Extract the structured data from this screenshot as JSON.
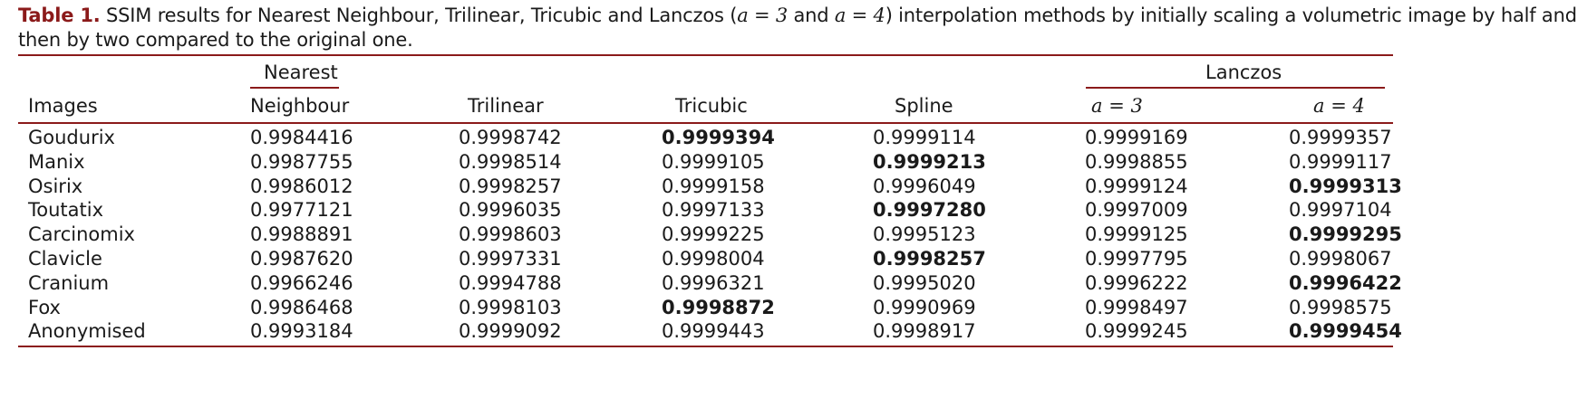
{
  "caption": {
    "label": "Table 1.",
    "text": "SSIM results for Nearest Neighbour, Trilinear, Tricubic and Lanczos (",
    "math1": "a = 3",
    "mid": " and ",
    "math2": "a = 4",
    "tail": ") interpolation methods by initially scaling a volumetric image by half and then by two compared to the original one."
  },
  "header": {
    "images": "Images",
    "nearest_top": "Nearest",
    "nearest_bottom": "Neighbour",
    "trilinear": "Trilinear",
    "tricubic": "Tricubic",
    "spline": "Spline",
    "lanczos": "Lanczos",
    "a3": "a = 3",
    "a4": "a = 4"
  },
  "rows": [
    {
      "image": "Goudurix",
      "values": [
        "0.9984416",
        "0.9998742",
        "0.9999394",
        "0.9999114",
        "0.9999169",
        "0.9999357"
      ],
      "best": 2
    },
    {
      "image": "Manix",
      "values": [
        "0.9987755",
        "0.9998514",
        "0.9999105",
        "0.9999213",
        "0.9998855",
        "0.9999117"
      ],
      "best": 3
    },
    {
      "image": "Osirix",
      "values": [
        "0.9986012",
        "0.9998257",
        "0.9999158",
        "0.9996049",
        "0.9999124",
        "0.9999313"
      ],
      "best": 5
    },
    {
      "image": "Toutatix",
      "values": [
        "0.9977121",
        "0.9996035",
        "0.9997133",
        "0.9997280",
        "0.9997009",
        "0.9997104"
      ],
      "best": 3
    },
    {
      "image": "Carcinomix",
      "values": [
        "0.9988891",
        "0.9998603",
        "0.9999225",
        "0.9995123",
        "0.9999125",
        "0.9999295"
      ],
      "best": 5
    },
    {
      "image": "Clavicle",
      "values": [
        "0.9987620",
        "0.9997331",
        "0.9998004",
        "0.9998257",
        "0.9997795",
        "0.9998067"
      ],
      "best": 3
    },
    {
      "image": "Cranium",
      "values": [
        "0.9966246",
        "0.9994788",
        "0.9996321",
        "0.9995020",
        "0.9996222",
        "0.9996422"
      ],
      "best": 5
    },
    {
      "image": "Fox",
      "values": [
        "0.9986468",
        "0.9998103",
        "0.9998872",
        "0.9990969",
        "0.9998497",
        "0.9998575"
      ],
      "best": 2
    },
    {
      "image": "Anonymised",
      "values": [
        "0.9993184",
        "0.9999092",
        "0.9999443",
        "0.9998917",
        "0.9999245",
        "0.9999454"
      ],
      "best": 5
    }
  ],
  "colors": {
    "accent": "#8b1a1a",
    "text": "#1a1a1a"
  }
}
